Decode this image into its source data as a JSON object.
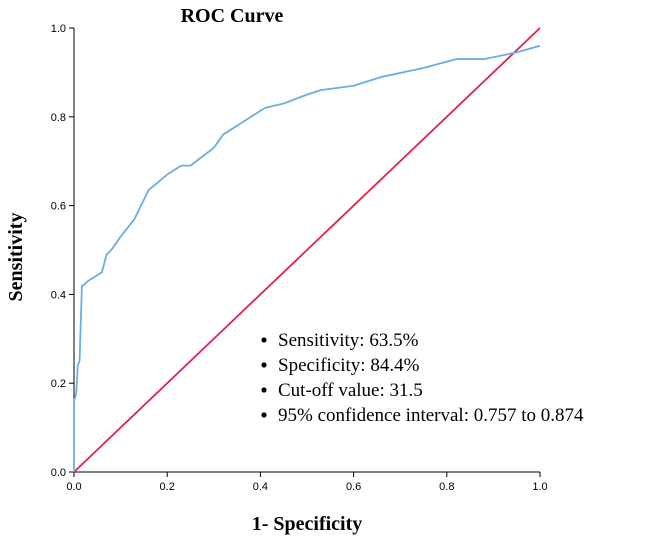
{
  "chart_data": {
    "type": "line",
    "title": "ROC Curve",
    "xlabel": "1- Specificity",
    "ylabel": "Sensitivity",
    "xlim": [
      0,
      1
    ],
    "ylim": [
      0,
      1
    ],
    "x_ticks": [
      "0.0",
      "0.2",
      "0.4",
      "0.6",
      "0.8",
      "1.0"
    ],
    "y_ticks": [
      "0.0",
      "0.2",
      "0.4",
      "0.6",
      "0.8",
      "1.0"
    ],
    "series": [
      {
        "name": "ROC curve",
        "color": "#6aaee0",
        "x": [
          0,
          0,
          0.003,
          0.005,
          0.008,
          0.012,
          0.017,
          0.02,
          0.03,
          0.045,
          0.06,
          0.07,
          0.08,
          0.1,
          0.13,
          0.16,
          0.2,
          0.23,
          0.25,
          0.3,
          0.32,
          0.38,
          0.41,
          0.45,
          0.5,
          0.53,
          0.6,
          0.66,
          0.75,
          0.82,
          0.88,
          0.95,
          1.0
        ],
        "y": [
          0,
          0.16,
          0.17,
          0.18,
          0.24,
          0.25,
          0.42,
          0.42,
          0.43,
          0.44,
          0.45,
          0.49,
          0.5,
          0.53,
          0.57,
          0.635,
          0.67,
          0.69,
          0.69,
          0.73,
          0.76,
          0.8,
          0.82,
          0.83,
          0.85,
          0.86,
          0.87,
          0.89,
          0.91,
          0.93,
          0.93,
          0.945,
          0.96
        ]
      },
      {
        "name": "Reference line",
        "color": "#e0224d",
        "x": [
          0,
          1
        ],
        "y": [
          0,
          1
        ]
      }
    ],
    "annotations": [
      "Sensitivity: 63.5%",
      "Specificity: 84.4%",
      "Cut-off value: 31.5",
      "95% confidence interval: 0.757 to 0.874"
    ],
    "grid": false,
    "legend": "none"
  }
}
